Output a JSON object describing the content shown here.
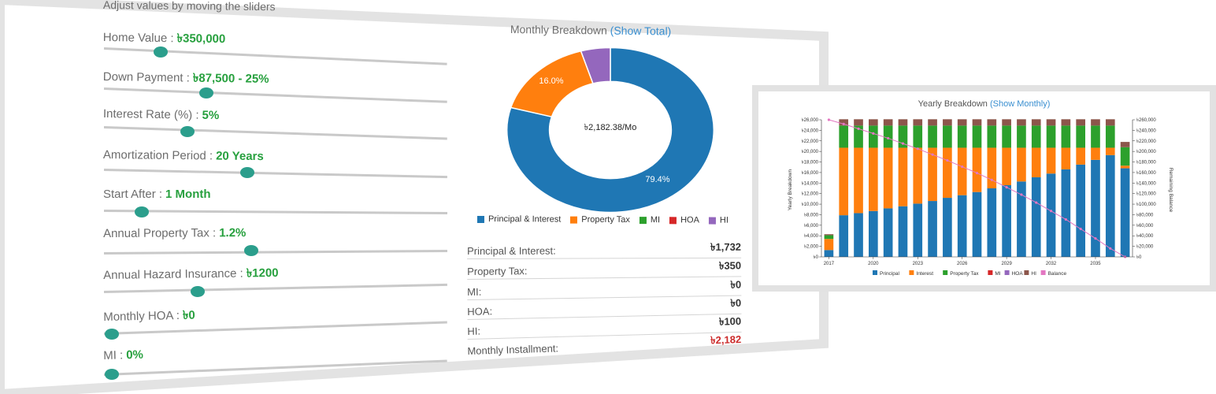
{
  "subtitle": "Adjust values by moving the sliders",
  "sliders": [
    {
      "label": "Home Value :",
      "value": "৳350,000",
      "level": 0.17
    },
    {
      "label": "Down Payment :",
      "value": "৳87,500 - 25%",
      "level": 0.3
    },
    {
      "label": "Interest Rate (%) :",
      "value": "5%",
      "level": 0.24
    },
    {
      "label": "Amortization Period :",
      "value": "20 Years",
      "level": 0.42
    },
    {
      "label": "Start After :",
      "value": "1 Month",
      "level": 0.11
    },
    {
      "label": "Annual Property Tax :",
      "value": "1.2%",
      "level": 0.43
    },
    {
      "label": "Annual Hazard Insurance :",
      "value": "৳1200",
      "level": 0.27
    },
    {
      "label": "Monthly HOA :",
      "value": "৳0",
      "level": 0.0
    },
    {
      "label": "MI :",
      "value": "0%",
      "level": 0.0
    }
  ],
  "donut": {
    "title": "Monthly Breakdown",
    "title_link": "(Show Total)",
    "center_text": "৳2,182.38/Mo",
    "legend": [
      {
        "label": "Principal & Interest",
        "color": "#1f77b4"
      },
      {
        "label": "Property Tax",
        "color": "#ff7f0e"
      },
      {
        "label": "MI",
        "color": "#2ca02c"
      },
      {
        "label": "HOA",
        "color": "#d62728"
      },
      {
        "label": "HI",
        "color": "#9467bd"
      }
    ]
  },
  "chart_data": [
    {
      "type": "pie",
      "title": "Monthly Breakdown",
      "categories": [
        "Principal & Interest",
        "Property Tax",
        "MI",
        "HOA",
        "HI"
      ],
      "values": [
        79.4,
        16.0,
        0,
        0,
        4.6
      ],
      "labels": [
        "79.4%",
        "16.0%",
        "",
        "",
        ""
      ],
      "colors": [
        "#1f77b4",
        "#ff7f0e",
        "#2ca02c",
        "#d62728",
        "#9467bd"
      ]
    },
    {
      "type": "bar",
      "title": "Yearly Breakdown",
      "title_link": "(Show Monthly)",
      "ylabel": "Yearly Breakdown",
      "y2label": "Remaining Balance",
      "ylim": [
        0,
        26000
      ],
      "y2lim": [
        0,
        260000
      ],
      "ytick_labels": [
        "৳0",
        "৳2,000",
        "৳4,000",
        "৳6,000",
        "৳8,000",
        "৳10,000",
        "৳12,000",
        "৳14,000",
        "৳16,000",
        "৳18,000",
        "৳20,000",
        "৳22,000",
        "৳24,000",
        "৳26,000"
      ],
      "y2tick_labels": [
        "৳0",
        "৳20,000",
        "৳40,000",
        "৳60,000",
        "৳80,000",
        "৳100,000",
        "৳120,000",
        "৳140,000",
        "৳160,000",
        "৳180,000",
        "৳200,000",
        "৳220,000",
        "৳240,000",
        "৳260,000"
      ],
      "xtick_labels": [
        "2017",
        "2020",
        "2023",
        "2026",
        "2029",
        "2032",
        "2035"
      ],
      "x": [
        2017,
        2018,
        2019,
        2020,
        2021,
        2022,
        2023,
        2024,
        2025,
        2026,
        2027,
        2028,
        2029,
        2030,
        2031,
        2032,
        2033,
        2034,
        2035,
        2036,
        2037
      ],
      "series": [
        {
          "name": "Principal",
          "color": "#1f77b4",
          "values": [
            1300,
            7900,
            8300,
            8700,
            9200,
            9600,
            10100,
            10600,
            11200,
            11700,
            12300,
            13000,
            13600,
            14300,
            15100,
            15800,
            16600,
            17500,
            18400,
            19300,
            16800
          ]
        },
        {
          "name": "Interest",
          "color": "#ff7f0e",
          "values": [
            2100,
            12800,
            12400,
            12000,
            11500,
            11100,
            10600,
            10100,
            9500,
            9000,
            8400,
            7700,
            7100,
            6400,
            5600,
            4900,
            4100,
            3200,
            2300,
            1400,
            500
          ]
        },
        {
          "name": "Property Tax",
          "color": "#2ca02c",
          "values": [
            700,
            4200,
            4200,
            4200,
            4200,
            4200,
            4200,
            4200,
            4200,
            4200,
            4200,
            4200,
            4200,
            4200,
            4200,
            4200,
            4200,
            4200,
            4200,
            4200,
            3500
          ]
        },
        {
          "name": "MI",
          "color": "#d62728",
          "values": [
            0,
            0,
            0,
            0,
            0,
            0,
            0,
            0,
            0,
            0,
            0,
            0,
            0,
            0,
            0,
            0,
            0,
            0,
            0,
            0,
            0
          ]
        },
        {
          "name": "HOA",
          "color": "#9467bd",
          "values": [
            0,
            0,
            0,
            0,
            0,
            0,
            0,
            0,
            0,
            0,
            0,
            0,
            0,
            0,
            0,
            0,
            0,
            0,
            0,
            0,
            0
          ]
        },
        {
          "name": "HI",
          "color": "#8c564b",
          "values": [
            200,
            1200,
            1200,
            1200,
            1200,
            1200,
            1200,
            1200,
            1200,
            1200,
            1200,
            1200,
            1200,
            1200,
            1200,
            1200,
            1200,
            1200,
            1200,
            1200,
            1000
          ]
        },
        {
          "name": "Balance",
          "color": "#e377c2",
          "line": true,
          "values": [
            260000,
            252000,
            243000,
            234000,
            225000,
            215000,
            205000,
            194000,
            183000,
            171000,
            159000,
            146000,
            132000,
            118000,
            103000,
            87000,
            71000,
            53000,
            35000,
            16000,
            0
          ]
        }
      ]
    }
  ],
  "summary": [
    {
      "label": "Principal & Interest:",
      "value": "৳1,732"
    },
    {
      "label": "Property Tax:",
      "value": "৳350"
    },
    {
      "label": "MI:",
      "value": "৳0"
    },
    {
      "label": "HOA:",
      "value": "৳0"
    },
    {
      "label": "HI:",
      "value": "৳100"
    },
    {
      "label": "Monthly Installment:",
      "value": "৳2,182"
    }
  ]
}
